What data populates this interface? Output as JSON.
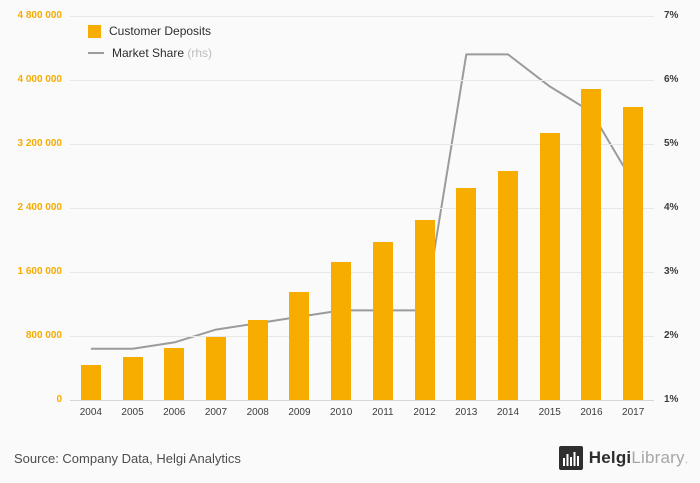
{
  "colors": {
    "bar": "#F7AC00",
    "line": "#9B9B9B",
    "grid": "#E7E7E7",
    "background": "#FAFAFA",
    "axis_text": "#3C3C3C"
  },
  "chart_data": {
    "type": "bar+line",
    "title": "",
    "categories": [
      "2004",
      "2005",
      "2006",
      "2007",
      "2008",
      "2009",
      "2010",
      "2011",
      "2012",
      "2013",
      "2014",
      "2015",
      "2016",
      "2017"
    ],
    "series": [
      {
        "name": "Customer Deposits",
        "type": "bar",
        "axis": "left",
        "color": "#F7AC00",
        "values": [
          440000,
          540000,
          650000,
          790000,
          1000000,
          1350000,
          1730000,
          1980000,
          2250000,
          2650000,
          2860000,
          3340000,
          3890000,
          3660000
        ]
      },
      {
        "name": "Market Share",
        "suffix": "(rhs)",
        "type": "line",
        "axis": "right",
        "color": "#9B9B9B",
        "values": [
          1.8,
          1.8,
          1.9,
          2.1,
          2.2,
          2.3,
          2.4,
          2.4,
          2.4,
          6.4,
          6.4,
          5.9,
          5.5,
          4.4
        ]
      }
    ],
    "left_axis": {
      "min": 0,
      "max": 4800000,
      "step": 800000,
      "labels": [
        "4 800 000",
        "4 000 000",
        "3 200 000",
        "2 400 000",
        "1 600 000",
        "800 000",
        "0"
      ]
    },
    "right_axis": {
      "min": 1,
      "max": 7,
      "step": 1,
      "labels": [
        "7%",
        "6%",
        "5%",
        "4%",
        "3%",
        "2%",
        "1%"
      ]
    },
    "grid": "horizontal",
    "legend_position": "top-left"
  },
  "footer": {
    "source": "Source: Company Data, Helgi Analytics",
    "brand_bold": "Helgi",
    "brand_light": "Library",
    "brand_suffix": "."
  }
}
